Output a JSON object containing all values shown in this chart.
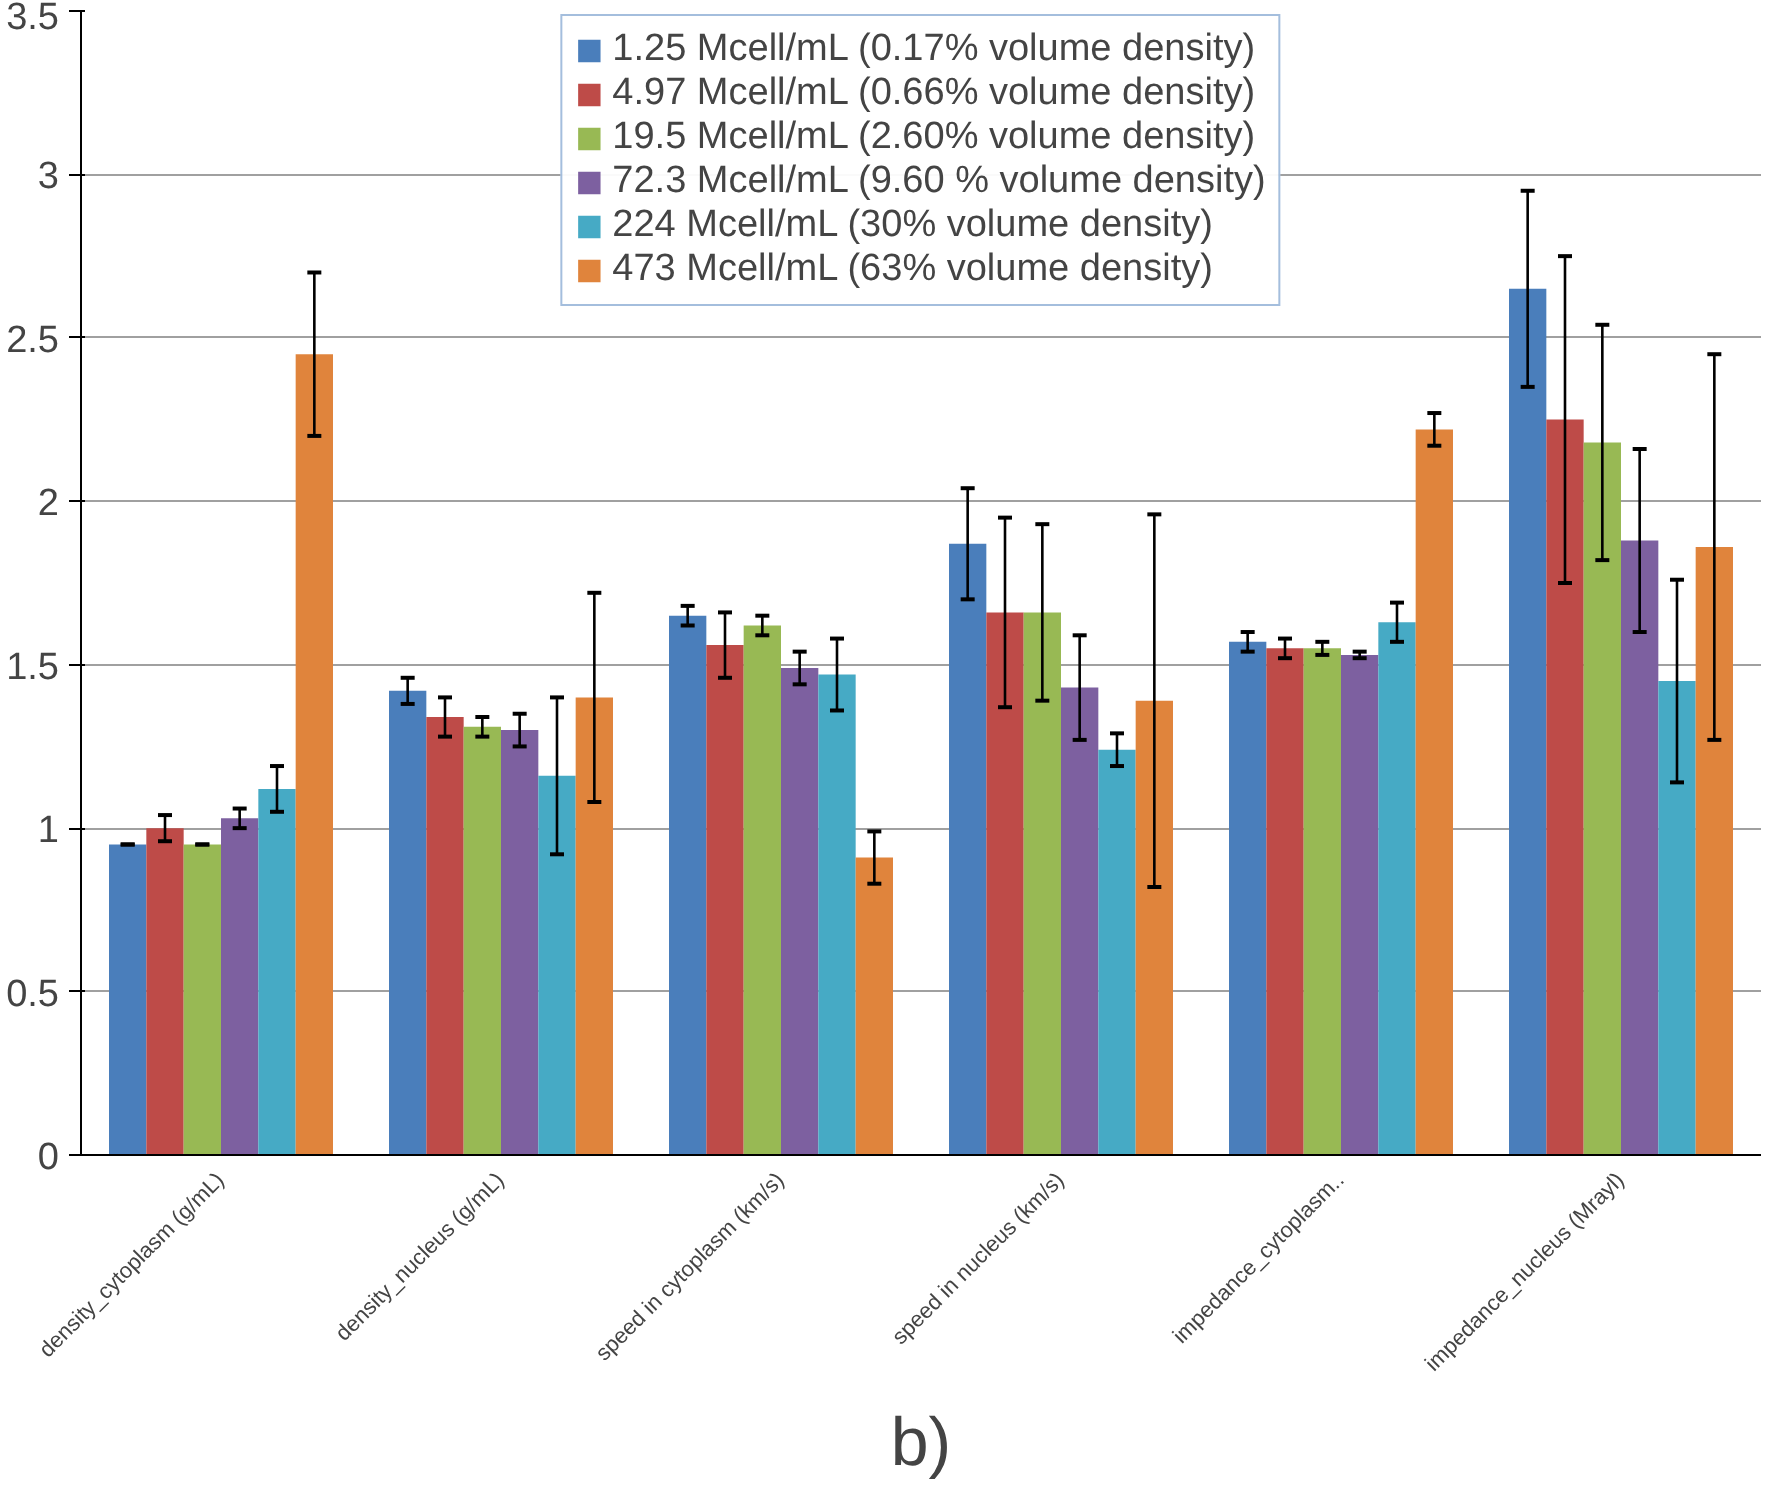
{
  "chart_data": {
    "type": "bar",
    "categories": [
      "density_cytoplasm (g/mL)",
      "density_nucleus (g/mL)",
      "speed in cytoplasm (km/s)",
      "speed in nucleus (km/s)",
      "impedance_cytoplasm..",
      "impedance_nucleus (Mrayl)"
    ],
    "series": [
      {
        "name": "1.25 Mcell/mL (0.17% volume density)",
        "color": "#4a7ebb",
        "values": [
          0.95,
          1.42,
          1.65,
          1.87,
          1.57,
          2.65
        ],
        "errors": [
          0,
          0.04,
          0.03,
          0.17,
          0.03,
          0.3
        ]
      },
      {
        "name": "4.97 Mcell/mL (0.66% volume density)",
        "color": "#be4b48",
        "values": [
          1.0,
          1.34,
          1.56,
          1.66,
          1.55,
          2.25
        ],
        "errors": [
          0.04,
          0.06,
          0.1,
          0.29,
          0.03,
          0.5
        ]
      },
      {
        "name": "19.5 Mcell/mL (2.60% volume density)",
        "color": "#98b954",
        "values": [
          0.95,
          1.31,
          1.62,
          1.66,
          1.55,
          2.18
        ],
        "errors": [
          0,
          0.03,
          0.03,
          0.27,
          0.02,
          0.36
        ]
      },
      {
        "name": "72.3 Mcell/mL (9.60 % volume density)",
        "color": "#7d60a0",
        "values": [
          1.03,
          1.3,
          1.49,
          1.43,
          1.53,
          1.88
        ],
        "errors": [
          0.03,
          0.05,
          0.05,
          0.16,
          0.01,
          0.28
        ]
      },
      {
        "name": "224 Mcell/mL (30% volume density)",
        "color": "#46aac5",
        "values": [
          1.12,
          1.16,
          1.47,
          1.24,
          1.63,
          1.45
        ],
        "errors": [
          0.07,
          0.24,
          0.11,
          0.05,
          0.06,
          0.31
        ]
      },
      {
        "name": "473 Mcell/mL (63% volume density)",
        "color": "#e0843c",
        "values": [
          2.45,
          1.4,
          0.91,
          1.39,
          2.22,
          1.86
        ],
        "errors": [
          0.25,
          0.32,
          0.08,
          0.57,
          0.05,
          0.59
        ]
      }
    ],
    "ylim": [
      0,
      3.5
    ],
    "yticks": [
      0,
      0.5,
      1,
      1.5,
      2,
      2.5,
      3,
      3.5
    ],
    "grid": "y",
    "legend": "top",
    "annotations": [
      "b)"
    ]
  }
}
